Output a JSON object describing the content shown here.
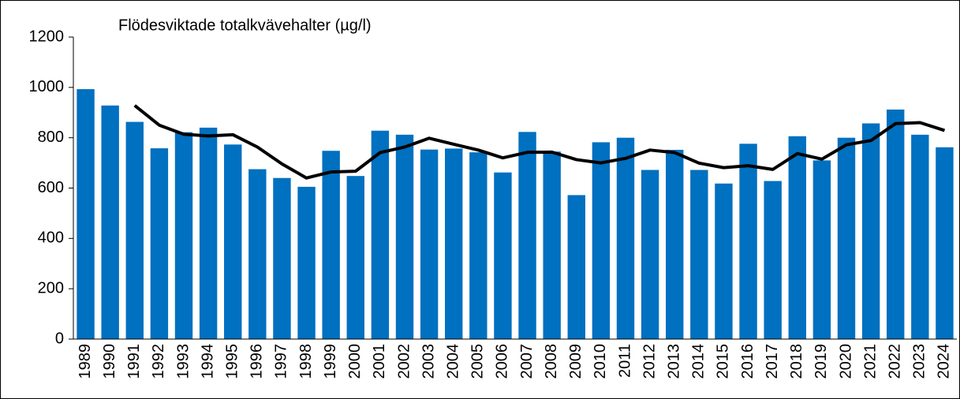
{
  "chart_data": {
    "type": "bar",
    "title": "Flödesviktade totalkvävehalter (µg/l)",
    "categories": [
      "1989",
      "1990",
      "1991",
      "1992",
      "1993",
      "1994",
      "1995",
      "1996",
      "1997",
      "1998",
      "1999",
      "2000",
      "2001",
      "2002",
      "2003",
      "2004",
      "2005",
      "2006",
      "2007",
      "2008",
      "2009",
      "2010",
      "2011",
      "2012",
      "2013",
      "2014",
      "2015",
      "2016",
      "2017",
      "2018",
      "2019",
      "2020",
      "2021",
      "2022",
      "2023",
      "2024"
    ],
    "series": [
      {
        "type": "bar",
        "color": "#0070c0",
        "values": [
          993,
          928,
          863,
          758,
          822,
          840,
          773,
          675,
          640,
          605,
          748,
          648,
          828,
          812,
          753,
          757,
          742,
          662,
          823,
          745,
          572,
          782,
          800,
          672,
          752,
          672,
          618,
          776,
          628,
          806,
          710,
          800,
          857,
          912,
          812,
          762
        ]
      },
      {
        "type": "line",
        "color": "#000000",
        "values": [
          null,
          null,
          928,
          850,
          814,
          807,
          812,
          763,
          696,
          640,
          664,
          667,
          741,
          763,
          798,
          774,
          751,
          720,
          742,
          743,
          713,
          700,
          718,
          751,
          741,
          699,
          681,
          689,
          674,
          737,
          715,
          772,
          789,
          856,
          860,
          829
        ]
      }
    ],
    "ylim": [
      0,
      1200
    ],
    "yticks": [
      0,
      200,
      400,
      600,
      800,
      1000,
      1200
    ],
    "grid": false
  }
}
